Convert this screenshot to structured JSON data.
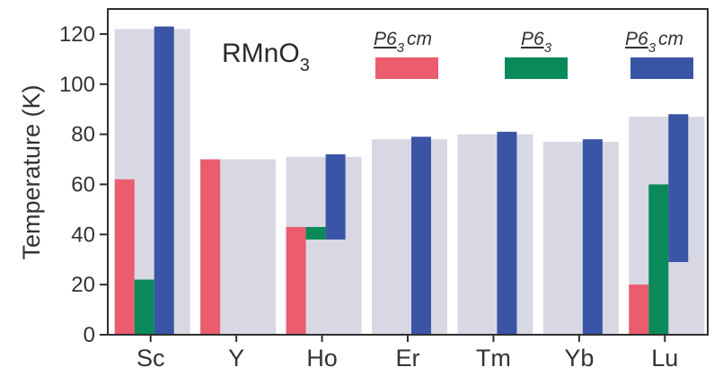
{
  "chart_data": {
    "type": "bar",
    "title": "RMnO",
    "title_subscript": "3",
    "ylabel": "Temperature (K)",
    "xlabel": "",
    "ylim": [
      0,
      130
    ],
    "yticks": [
      0,
      20,
      40,
      60,
      80,
      100,
      120
    ],
    "categories": [
      "Sc",
      "Y",
      "Ho",
      "Er",
      "Tm",
      "Yb",
      "Lu"
    ],
    "colors": {
      "background_band": "#d8d8e4",
      "P6_3cm_low": "#ea5c6e",
      "P6_3": "#0a8a58",
      "P6_3cm_high": "#3a54a6"
    },
    "legend": [
      {
        "base": "P6",
        "sub": "3",
        "rest": "cm",
        "color": "#ea5c6e"
      },
      {
        "base": "P6",
        "sub": "3",
        "rest": "",
        "color": "#0a8a58"
      },
      {
        "base": "P6",
        "sub": "3",
        "rest": "cm",
        "color": "#3a54a6"
      }
    ],
    "bars": [
      {
        "category": "Sc",
        "background": 122,
        "P6_3cm_low": [
          0,
          62
        ],
        "P6_3": [
          0,
          22
        ],
        "P6_3cm_high": [
          0,
          123
        ]
      },
      {
        "category": "Y",
        "background": 70,
        "P6_3cm_low": [
          0,
          70
        ]
      },
      {
        "category": "Ho",
        "background": 71,
        "P6_3cm_low": [
          0,
          43
        ],
        "P6_3": [
          38,
          43
        ],
        "P6_3cm_high": [
          38,
          72
        ]
      },
      {
        "category": "Er",
        "background": 78,
        "P6_3cm_high": [
          0,
          79
        ]
      },
      {
        "category": "Tm",
        "background": 80,
        "P6_3cm_high": [
          0,
          81
        ]
      },
      {
        "category": "Yb",
        "background": 77,
        "P6_3cm_high": [
          0,
          78
        ]
      },
      {
        "category": "Lu",
        "background": 87,
        "P6_3cm_low": [
          0,
          20
        ],
        "P6_3": [
          0,
          60
        ],
        "P6_3cm_high": [
          29,
          88
        ]
      }
    ]
  }
}
